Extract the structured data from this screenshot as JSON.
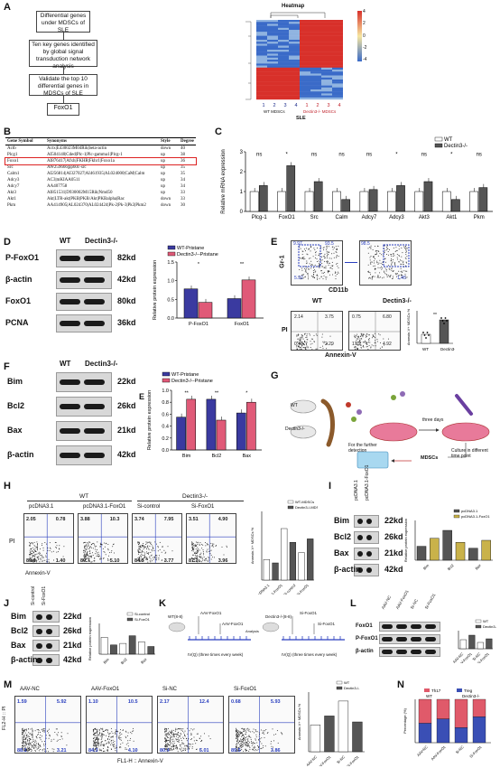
{
  "panels": {
    "A": "A",
    "B": "B",
    "C": "C",
    "D": "D",
    "E": "E",
    "F": "F",
    "G": "G",
    "H": "H",
    "I": "I",
    "J": "J",
    "K": "K",
    "L": "L",
    "M": "M",
    "N": "N"
  },
  "panelA": {
    "boxes": [
      "Differential genes under MDSCs of SLE",
      "Ten key genes identified by global signal transduction network analysis",
      "Validate the top 10 differential genes in MDSCs of SLE",
      "FoxO1"
    ],
    "heatmap_title": "Heatmap",
    "scale": [
      "4",
      "2",
      "0",
      "-2",
      "-4"
    ],
    "cols": [
      "1",
      "2",
      "3",
      "4",
      "1",
      "2",
      "3",
      "4"
    ],
    "group_wt": "WT MDSCs",
    "group_dec": "Dectin3-/- MDSCs",
    "group_sle": "SLE"
  },
  "panelB": {
    "headers": [
      "Gene Symbol",
      "Synonyms",
      "Style",
      "Degree"
    ],
    "rows": [
      [
        "Actb",
        "Actx|E430023M04Rik|beta-actin",
        "down",
        "40"
      ],
      [
        "Plcg1",
        "AI504140|Cded|Plc-1|Plc-gamma1|Plcg-1",
        "up",
        "38"
      ],
      [
        "Foxo1",
        "AI876417|Afxh|FKHR|Fkhr1|Foxo1a",
        "up",
        "36"
      ],
      [
        "Src",
        "AW259666|pp60c-src",
        "up",
        "35"
      ],
      [
        "Calm1",
        "AI256814|AI327027|AI461935|AL024000|CaM|Calm",
        "up",
        "35"
      ],
      [
        "Adcy3",
        "AC3|mKIAA0511",
        "up",
        "34"
      ],
      [
        "Adcy7",
        "AA407758",
        "up",
        "34"
      ],
      [
        "Akt3",
        "AI851531|D930002M15Rik|Nmd50",
        "up",
        "33"
      ],
      [
        "Akt1",
        "Akt|LTR-akt|PKB|PKB/Akt|PKBalpha|Rac",
        "down",
        "33"
      ],
      [
        "Pkm",
        "AA414905|AL024370|AL024424|Pk-2|Pk-3|Pk3|Pkm2",
        "down",
        "30"
      ]
    ]
  },
  "chart_data": [
    {
      "panel": "C",
      "type": "bar",
      "ylabel": "Relative mRNA expression",
      "ylim": [
        0,
        3
      ],
      "yticks": [
        "0",
        "1",
        "2",
        "3"
      ],
      "categories": [
        "Plcg-1",
        "FoxO1",
        "Src",
        "Calm",
        "Adcy7",
        "Adcy3",
        "Akt3",
        "Akt1",
        "Pkm"
      ],
      "series": [
        {
          "name": "WT",
          "values": [
            1.0,
            1.0,
            1.0,
            1.0,
            1.0,
            1.0,
            1.0,
            1.0,
            1.0
          ]
        },
        {
          "name": "Dectin3-/-",
          "values": [
            1.3,
            2.3,
            1.5,
            0.6,
            1.1,
            1.3,
            1.5,
            0.6,
            1.2
          ]
        }
      ],
      "sig": [
        "ns",
        "*",
        "ns",
        "ns",
        "ns",
        "*",
        "ns",
        "*",
        "ns"
      ],
      "colors": {
        "WT": "#ffffff",
        "Dectin3-/-": "#555555"
      }
    },
    {
      "panel": "D",
      "type": "bar",
      "ylabel": "Relative protein expression",
      "ylim": [
        0,
        1.5
      ],
      "yticks": [
        "0.0",
        "0.5",
        "1.0",
        "1.5"
      ],
      "categories": [
        "P-FoxO1",
        "FoxO1"
      ],
      "series": [
        {
          "name": "WT-Pristane",
          "values": [
            0.78,
            0.52
          ]
        },
        {
          "name": "Dectin3-/--Pristane",
          "values": [
            0.42,
            1.02
          ]
        }
      ],
      "sig": [
        "*",
        "**"
      ],
      "colors": {
        "WT-Pristane": "#3a3aa0",
        "Dectin3-/--Pristane": "#e05a78"
      }
    },
    {
      "panel": "F",
      "type": "bar",
      "ylabel": "Relative protein expression",
      "ylim": [
        0,
        1.0
      ],
      "yticks": [
        "0.0",
        "0.2",
        "0.4",
        "0.6",
        "0.8",
        "1.0"
      ],
      "categories": [
        "Bim",
        "Bcl2",
        "Bax"
      ],
      "series": [
        {
          "name": "WT-Pristane",
          "values": [
            0.55,
            0.85,
            0.62
          ]
        },
        {
          "name": "Dectin3-/--Pristane",
          "values": [
            0.85,
            0.5,
            0.8
          ]
        }
      ],
      "sig": [
        "**",
        "**",
        "*"
      ],
      "colors": {
        "WT-Pristane": "#3a3aa0",
        "Dectin3-/--Pristane": "#e05a78"
      }
    }
  ],
  "panelD": {
    "wt": "WT",
    "dec": "Dectin3-/-",
    "rows": [
      [
        "P-FoxO1",
        "82kd"
      ],
      [
        "β-actin",
        "42kd"
      ],
      [
        "FoxO1",
        "80kd"
      ],
      [
        "PCNA",
        "36kd"
      ]
    ]
  },
  "panelE": {
    "gr1": "Gr-1",
    "cd11b": "CD11b",
    "wt": "WT",
    "dec": "Dectin3-/-",
    "pi": "PI",
    "annexin": "Annexin-V",
    "q_top": [
      "9.97",
      "93.5",
      "98.5",
      "1.45",
      "5.92"
    ],
    "q_bottom": [
      [
        "2.14",
        "3.75"
      ],
      [
        "0.43",
        "2.29"
      ],
      [
        "0.75",
        "6.80"
      ],
      [
        "1.02",
        "4.92"
      ]
    ],
    "bar_ylabel": "Annexin-V+ MDSCs %",
    "bar_cats": [
      "WT",
      "Dectin3-/-"
    ],
    "sig": "**"
  },
  "panelF": {
    "wt": "WT",
    "dec": "Dectin3-/-",
    "rows": [
      [
        "Bim",
        "22kd"
      ],
      [
        "Bcl2",
        "26kd"
      ],
      [
        "Bax",
        "21kd"
      ],
      [
        "β-actin",
        "42kd"
      ]
    ],
    "extra": "E"
  },
  "panelG": {
    "wt": "WT",
    "dec": "Dectin3-/-",
    "three_days": "three days",
    "mdscs": "MDSCs",
    "culture": "Culture in different time point",
    "detect": "For the further detection"
  },
  "panelH": {
    "wt": "WT",
    "dec": "Dectin3-/-",
    "conds": [
      "pcDNA3.1",
      "pcDNA3.1-FoxO1",
      "Si-control",
      "Si-FoxO1"
    ],
    "q": [
      [
        "2.05",
        "0.78",
        "89.1",
        "1.40"
      ],
      [
        "3.88",
        "10.3",
        "80.7",
        "5.10"
      ],
      [
        "3.74",
        "7.95",
        "84.3",
        "3.77"
      ],
      [
        "3.51",
        "4.90",
        "87.3",
        "3.96"
      ]
    ],
    "pi": "PI",
    "annexin": "Annexin-V",
    "legend": [
      "WT-MDSCs",
      "Dectin3-/-MDSCs"
    ],
    "ylabel": "Annexin-V+ MDSCs %",
    "sig": "***"
  },
  "panelI": {
    "lanes": [
      "pcDNA3.1",
      "pcDNA3.1-FoxO1"
    ],
    "rows": [
      [
        "Bim",
        "22kd"
      ],
      [
        "Bcl2",
        "26kd"
      ],
      [
        "Bax",
        "21kd"
      ],
      [
        "β-actin",
        "42kd"
      ]
    ],
    "legend": [
      "pcDNA3.1",
      "pcDNA3.1-FoxO1"
    ],
    "cats": [
      "Bim",
      "Bcl2",
      "Bax"
    ],
    "ylabel": "Relative protein expression"
  },
  "panelJ": {
    "lanes": [
      "Si-control",
      "Si-FoxO1"
    ],
    "rows": [
      [
        "Bim",
        "22kd"
      ],
      [
        "Bcl2",
        "26kd"
      ],
      [
        "Bax",
        "21kd"
      ],
      [
        "β-actin",
        "42kd"
      ]
    ],
    "legend": [
      "Si-control",
      "Si-FoxO1"
    ],
    "cats": [
      "Bim",
      "Bcl2",
      "Bax"
    ],
    "ylabel": "Relative protein expression"
  },
  "panelK": {
    "left_mouse": "WT(8-8)",
    "right_mouse": "Dectin3-/-(8-8)",
    "aav1": "AAV-FoxO1",
    "aav2": "AAV-FoxO1",
    "si1": "Si-FoxO1",
    "si2": "Si-FoxO1",
    "iv": "IV(Q)",
    "analysis": "Analysis",
    "note": "IV(Q) (three times every week)"
  },
  "panelL": {
    "lanes": [
      "AAV-NC",
      "AAV-FoxO1",
      "Si-NC",
      "Si-FoxO1"
    ],
    "rows": [
      "FoxO1",
      "P-FoxO1",
      "β-actin"
    ],
    "legend": [
      "WT",
      "Dectin3-/-"
    ]
  },
  "panelM": {
    "conds": [
      "AAV-NC",
      "AAV-FoxO1",
      "Si-NC",
      "Si-FoxO1"
    ],
    "q": [
      [
        "1.59",
        "5.92",
        "88.1",
        "3.21"
      ],
      [
        "1.10",
        "10.5",
        "84.3",
        "4.10"
      ],
      [
        "2.17",
        "12.4",
        "80.4",
        "5.01"
      ],
      [
        "0.68",
        "5.93",
        "89.5",
        "3.86"
      ]
    ],
    "ylabel": "FL2-H :: PI",
    "xlabel": "FL1-H :: Annexin-V",
    "legend": [
      "WT",
      "Dectin3-/-"
    ],
    "bar_ylabel": "Annexin-V+ MDSCs %"
  },
  "panelN": {
    "legend": [
      "Th17",
      "Treg"
    ],
    "ylabel": "Percentage (%)",
    "wt": "WT",
    "dec": "Dectin3-/-",
    "cats": [
      "AAV-NC",
      "AAV-FoxO1",
      "Si-NC",
      "Si-FoxO1"
    ]
  }
}
